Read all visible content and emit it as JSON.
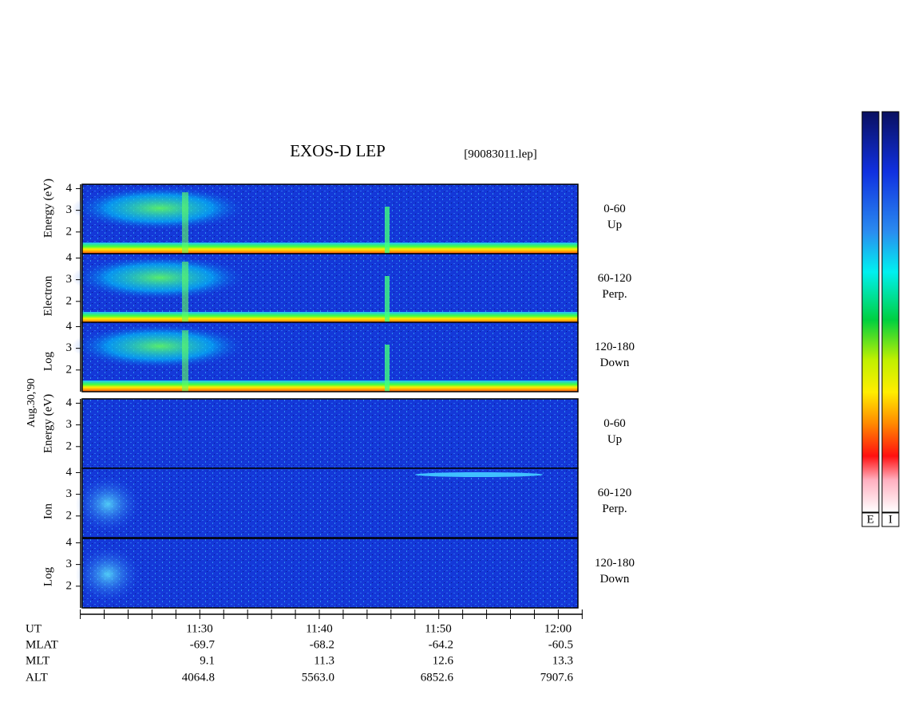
{
  "title": "EXOS-D LEP",
  "file_name": "[90083011.lep]",
  "date_label": "Aug.30,'90",
  "yticks": [
    2,
    3,
    4
  ],
  "ylim": [
    1,
    4.2
  ],
  "groups": [
    {
      "ylabel": [
        "Log",
        "Electron",
        "Energy (eV)"
      ],
      "panels": [
        {
          "label": [
            "0-60",
            "Up"
          ]
        },
        {
          "label": [
            "60-120",
            "Perp."
          ]
        },
        {
          "label": [
            "120-180",
            "Down"
          ]
        }
      ]
    },
    {
      "ylabel": [
        "Log",
        "Ion",
        "Energy (eV)"
      ],
      "panels": [
        {
          "label": [
            "0-60",
            "Up"
          ]
        },
        {
          "label": [
            "60-120",
            "Perp."
          ]
        },
        {
          "label": [
            "120-180",
            "Down"
          ]
        }
      ]
    }
  ],
  "time_table": [
    {
      "label": "UT",
      "values": [
        "11:30",
        "11:40",
        "11:50",
        "12:00"
      ]
    },
    {
      "label": "MLAT",
      "values": [
        "-69.7",
        "-68.2",
        "-64.2",
        "-60.5"
      ]
    },
    {
      "label": "MLT",
      "values": [
        "9.1",
        "11.3",
        "12.6",
        "13.3"
      ]
    },
    {
      "label": "ALT",
      "values": [
        "4064.8",
        "5563.0",
        "6852.6",
        "7907.6"
      ]
    }
  ],
  "colorbars": [
    "E",
    "I"
  ]
}
